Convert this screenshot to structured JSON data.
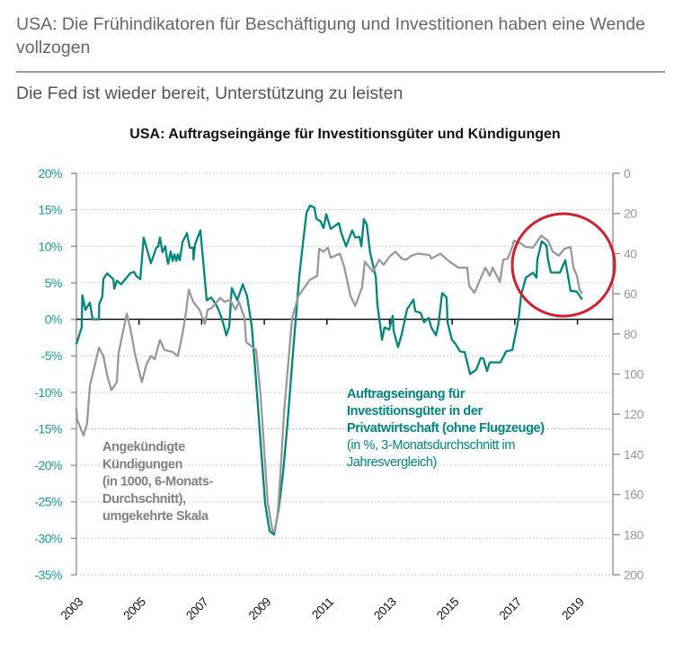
{
  "header": {
    "title": "USA: Die Frühindikatoren für Beschäftigung und Investitionen haben eine Wende vollzogen",
    "subtitle": "Die Fed ist wieder bereit, Unterstützung zu leisten"
  },
  "chart_data": {
    "type": "line",
    "title": "USA: Auftragseingänge für Investitionsgüter und Kündigungen",
    "grid": "horizontal dotted",
    "left_axis": {
      "ylim": [
        -35,
        20
      ],
      "ticks": [
        "20%",
        "15%",
        "10%",
        "5%",
        "0%",
        "-5%",
        "-10%",
        "-15%",
        "-20%",
        "-25%",
        "-30%",
        "-35%"
      ],
      "color": "#1a9a94"
    },
    "right_axis": {
      "ylim": [
        0,
        200
      ],
      "inverted": true,
      "ticks": [
        "0",
        "20",
        "40",
        "60",
        "80",
        "100",
        "120",
        "140",
        "160",
        "180",
        "200"
      ],
      "color": "#999999"
    },
    "x_ticks": [
      "2003",
      "2005",
      "2007",
      "2009",
      "2011",
      "2013",
      "2015",
      "2017",
      "2019"
    ],
    "xlim": [
      2003,
      2020
    ],
    "annotation": {
      "shape": "red circle",
      "color": "#d0202e",
      "around": "2017-2019"
    },
    "series": [
      {
        "name_lines": [
          "Auftragseingang für",
          "Investitionsgüter in der",
          "Privatwirtschaft (ohne Flugzeuge)"
        ],
        "unit_lines": [
          "(in %, 3-Monatsdurchschnitt im",
          "Jahresvergleich)"
        ],
        "axis": "left",
        "color": "#00857d",
        "points": [
          [
            2003.0,
            -3.4
          ],
          [
            2003.17,
            -1.1
          ],
          [
            2003.19,
            3.3
          ],
          [
            2003.29,
            1.3
          ],
          [
            2003.43,
            2.3
          ],
          [
            2003.52,
            0
          ],
          [
            2003.72,
            0
          ],
          [
            2003.73,
            2.1
          ],
          [
            2003.83,
            3.1
          ],
          [
            2003.86,
            5.5
          ],
          [
            2003.98,
            6.3
          ],
          [
            2004.18,
            5.5
          ],
          [
            2004.21,
            4.2
          ],
          [
            2004.29,
            5.3
          ],
          [
            2004.43,
            4.8
          ],
          [
            2004.72,
            6.3
          ],
          [
            2004.84,
            6.5
          ],
          [
            2004.92,
            5.9
          ],
          [
            2005.04,
            5.5
          ],
          [
            2005.15,
            11.2
          ],
          [
            2005.38,
            7.7
          ],
          [
            2005.55,
            9.8
          ],
          [
            2005.61,
            10
          ],
          [
            2005.67,
            11.2
          ],
          [
            2005.75,
            9.2
          ],
          [
            2005.84,
            10
          ],
          [
            2005.9,
            8.1
          ],
          [
            2005.93,
            7.6
          ],
          [
            2006.01,
            9.3
          ],
          [
            2006.07,
            8
          ],
          [
            2006.13,
            8.9
          ],
          [
            2006.19,
            8
          ],
          [
            2006.24,
            8.9
          ],
          [
            2006.3,
            8.1
          ],
          [
            2006.39,
            10.6
          ],
          [
            2006.53,
            11.8
          ],
          [
            2006.62,
            9.8
          ],
          [
            2006.73,
            9.8
          ],
          [
            2006.74,
            8.2
          ],
          [
            2006.79,
            10.3
          ],
          [
            2006.96,
            12.2
          ],
          [
            2007.16,
            2.6
          ],
          [
            2007.3,
            3
          ],
          [
            2007.45,
            2.1
          ],
          [
            2007.56,
            1.1
          ],
          [
            2007.68,
            -0.4
          ],
          [
            2007.79,
            -2.2
          ],
          [
            2007.88,
            -1
          ],
          [
            2007.96,
            4.3
          ],
          [
            2008.14,
            2.6
          ],
          [
            2008.31,
            4.8
          ],
          [
            2008.45,
            3.2
          ],
          [
            2008.6,
            -1
          ],
          [
            2008.71,
            -6.9
          ],
          [
            2008.88,
            -16.7
          ],
          [
            2009.03,
            -25.3
          ],
          [
            2009.17,
            -29
          ],
          [
            2009.31,
            -29.5
          ],
          [
            2009.46,
            -26
          ],
          [
            2009.6,
            -21
          ],
          [
            2009.74,
            -14.3
          ],
          [
            2009.94,
            -3.2
          ],
          [
            2010.12,
            6
          ],
          [
            2010.23,
            10.3
          ],
          [
            2010.35,
            14.6
          ],
          [
            2010.46,
            15.6
          ],
          [
            2010.6,
            15.3
          ],
          [
            2010.66,
            13.8
          ],
          [
            2010.8,
            13.4
          ],
          [
            2010.89,
            12.5
          ],
          [
            2010.98,
            14.4
          ],
          [
            2011.12,
            12.4
          ],
          [
            2011.38,
            13.2
          ],
          [
            2011.46,
            11.8
          ],
          [
            2011.61,
            10
          ],
          [
            2011.81,
            12.2
          ],
          [
            2011.9,
            11.2
          ],
          [
            2012.04,
            11.3
          ],
          [
            2012.1,
            10
          ],
          [
            2012.18,
            13.7
          ],
          [
            2012.27,
            13
          ],
          [
            2012.38,
            9.1
          ],
          [
            2012.56,
            5.8
          ],
          [
            2012.61,
            2.1
          ],
          [
            2012.76,
            -2.8
          ],
          [
            2012.84,
            -1.1
          ],
          [
            2012.99,
            -1.4
          ],
          [
            2013.1,
            0.5
          ],
          [
            2013.13,
            -1.6
          ],
          [
            2013.27,
            -3.8
          ],
          [
            2013.39,
            -2
          ],
          [
            2013.56,
            1.4
          ],
          [
            2013.76,
            2.7
          ],
          [
            2013.82,
            1.1
          ],
          [
            2013.99,
            0.9
          ],
          [
            2014.1,
            -0.4
          ],
          [
            2014.25,
            0.2
          ],
          [
            2014.33,
            -1.1
          ],
          [
            2014.48,
            -2.2
          ],
          [
            2014.56,
            -0.7
          ],
          [
            2014.68,
            3.6
          ],
          [
            2014.82,
            3
          ],
          [
            2014.85,
            -0.4
          ],
          [
            2014.99,
            -2.8
          ],
          [
            2015.11,
            -3.4
          ],
          [
            2015.25,
            -4.4
          ],
          [
            2015.4,
            -4.5
          ],
          [
            2015.57,
            -7.5
          ],
          [
            2015.77,
            -6.9
          ],
          [
            2015.91,
            -5.3
          ],
          [
            2016.0,
            -5.4
          ],
          [
            2016.11,
            -7.1
          ],
          [
            2016.2,
            -5.9
          ],
          [
            2016.54,
            -5.9
          ],
          [
            2016.72,
            -4.4
          ],
          [
            2016.92,
            -4.2
          ],
          [
            2017.12,
            0.1
          ],
          [
            2017.2,
            3.3
          ],
          [
            2017.35,
            5.7
          ],
          [
            2017.58,
            6.4
          ],
          [
            2017.69,
            5.7
          ],
          [
            2017.72,
            8.2
          ],
          [
            2017.86,
            10.7
          ],
          [
            2018.01,
            10.1
          ],
          [
            2018.06,
            8.2
          ],
          [
            2018.15,
            6.4
          ],
          [
            2018.44,
            6.4
          ],
          [
            2018.61,
            8.1
          ],
          [
            2018.78,
            3.9
          ],
          [
            2018.98,
            3.8
          ],
          [
            2019.15,
            2.7
          ]
        ]
      },
      {
        "name_lines": [
          "Angekündigte",
          "Kündigungen",
          "(in 1000, 6-Monats-",
          "Durchschnitt),",
          "umgekehrte Skala"
        ],
        "axis": "right",
        "color": "#999999",
        "points": [
          [
            2003.0,
            117
          ],
          [
            2003.02,
            122.6
          ],
          [
            2003.23,
            130.6
          ],
          [
            2003.34,
            124.8
          ],
          [
            2003.43,
            106
          ],
          [
            2003.72,
            86.8
          ],
          [
            2003.86,
            91
          ],
          [
            2004.0,
            101.6
          ],
          [
            2004.12,
            108
          ],
          [
            2004.29,
            104
          ],
          [
            2004.35,
            89.5
          ],
          [
            2004.46,
            81
          ],
          [
            2004.61,
            70
          ],
          [
            2004.72,
            77
          ],
          [
            2004.87,
            90
          ],
          [
            2005.09,
            104
          ],
          [
            2005.24,
            95
          ],
          [
            2005.38,
            91
          ],
          [
            2005.5,
            92.6
          ],
          [
            2005.67,
            83
          ],
          [
            2005.81,
            88
          ],
          [
            2006.07,
            89
          ],
          [
            2006.24,
            91
          ],
          [
            2006.39,
            80
          ],
          [
            2006.5,
            69
          ],
          [
            2006.59,
            58
          ],
          [
            2006.73,
            64
          ],
          [
            2006.93,
            68
          ],
          [
            2007.1,
            75
          ],
          [
            2007.19,
            68
          ],
          [
            2007.33,
            67
          ],
          [
            2007.59,
            62
          ],
          [
            2007.73,
            64
          ],
          [
            2007.91,
            63
          ],
          [
            2008.08,
            68
          ],
          [
            2008.19,
            64
          ],
          [
            2008.37,
            72
          ],
          [
            2008.42,
            84
          ],
          [
            2008.74,
            88
          ],
          [
            2008.88,
            110
          ],
          [
            2009.11,
            164
          ],
          [
            2009.26,
            178
          ],
          [
            2009.34,
            178.5
          ],
          [
            2009.43,
            169
          ],
          [
            2009.51,
            151
          ],
          [
            2009.63,
            119
          ],
          [
            2009.8,
            88
          ],
          [
            2009.89,
            72
          ],
          [
            2010.09,
            61
          ],
          [
            2010.32,
            56
          ],
          [
            2010.46,
            53
          ],
          [
            2010.69,
            51
          ],
          [
            2010.75,
            37.6
          ],
          [
            2010.89,
            39
          ],
          [
            2011.03,
            37
          ],
          [
            2011.12,
            42
          ],
          [
            2011.41,
            40
          ],
          [
            2011.55,
            46.5
          ],
          [
            2011.75,
            61
          ],
          [
            2011.9,
            66
          ],
          [
            2012.12,
            57
          ],
          [
            2012.21,
            44
          ],
          [
            2012.47,
            49
          ],
          [
            2012.67,
            43
          ],
          [
            2012.81,
            45.6
          ],
          [
            2012.99,
            41.6
          ],
          [
            2013.19,
            39
          ],
          [
            2013.39,
            42.5
          ],
          [
            2013.53,
            43
          ],
          [
            2013.7,
            41
          ],
          [
            2013.9,
            40
          ],
          [
            2014.28,
            40.7
          ],
          [
            2014.33,
            42.5
          ],
          [
            2014.62,
            40
          ],
          [
            2014.91,
            44
          ],
          [
            2015.2,
            47
          ],
          [
            2015.48,
            47
          ],
          [
            2015.54,
            56
          ],
          [
            2015.71,
            59.5
          ],
          [
            2015.97,
            50
          ],
          [
            2016.06,
            47
          ],
          [
            2016.2,
            51
          ],
          [
            2016.29,
            47
          ],
          [
            2016.52,
            54
          ],
          [
            2016.63,
            43
          ],
          [
            2016.77,
            42.5
          ],
          [
            2016.92,
            36.7
          ],
          [
            2016.97,
            33.5
          ],
          [
            2017.2,
            35
          ],
          [
            2017.35,
            36.7
          ],
          [
            2017.58,
            37
          ],
          [
            2017.84,
            31
          ],
          [
            2018.06,
            33.5
          ],
          [
            2018.21,
            39
          ],
          [
            2018.41,
            41
          ],
          [
            2018.58,
            37.6
          ],
          [
            2018.78,
            36.7
          ],
          [
            2018.87,
            47
          ],
          [
            2018.98,
            51
          ],
          [
            2019.07,
            58
          ],
          [
            2019.15,
            60
          ]
        ]
      }
    ]
  }
}
